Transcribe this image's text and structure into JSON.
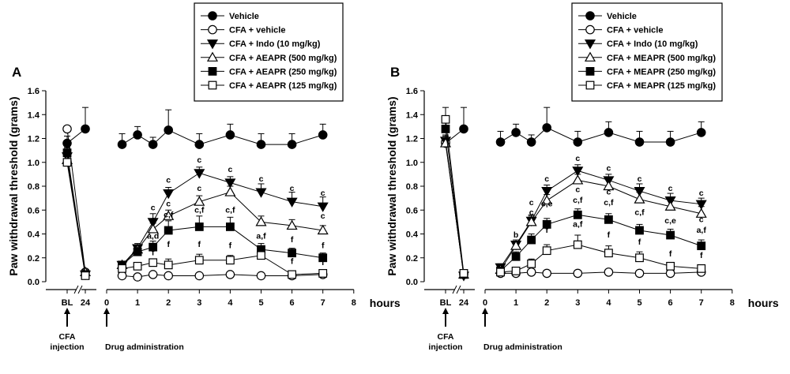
{
  "chart_data": [
    {
      "type": "line",
      "panel_label": "A",
      "ylabel": "Paw withdrawal threshold (grams)",
      "ylim": [
        0,
        1.6
      ],
      "yticks": [
        "0.0",
        "0.2",
        "0.4",
        "0.6",
        "0.8",
        "1.0",
        "1.2",
        "1.4",
        "1.6"
      ],
      "baseline_ticks": [
        "BL",
        "24"
      ],
      "xticks": [
        "0",
        "1",
        "2",
        "3",
        "4",
        "5",
        "6",
        "7",
        "8"
      ],
      "xlabel": "hours",
      "x": [
        0.5,
        1,
        1.5,
        2,
        3,
        4,
        5,
        6,
        7
      ],
      "notes": {
        "cfa": "CFA injection",
        "drug": "Drug administration"
      },
      "series": [
        {
          "name": "Vehicle",
          "marker": "circle-filled",
          "baseline": [
            1.16,
            1.28
          ],
          "baseline_err": [
            0.06,
            0.18
          ],
          "values": [
            1.15,
            1.23,
            1.15,
            1.27,
            1.15,
            1.23,
            1.15,
            1.15,
            1.23
          ],
          "err": [
            0.09,
            0.07,
            0.06,
            0.17,
            0.09,
            0.09,
            0.09,
            0.09,
            0.09
          ]
        },
        {
          "name": "CFA + vehicle",
          "marker": "circle-open",
          "baseline": [
            1.28,
            0.08
          ],
          "baseline_err": [
            0.0,
            0.02
          ],
          "values": [
            0.05,
            0.04,
            0.06,
            0.05,
            0.05,
            0.06,
            0.05,
            0.05,
            0.06
          ],
          "err": [
            0.01,
            0.01,
            0.01,
            0.01,
            0.01,
            0.01,
            0.01,
            0.01,
            0.01
          ]
        },
        {
          "name": "CFA + Indo (10 mg/kg)",
          "marker": "triangle-down-filled",
          "baseline": [
            1.05,
            0.06
          ],
          "baseline_err": [
            0.05,
            0.02
          ],
          "values": [
            0.14,
            0.28,
            0.5,
            0.74,
            0.91,
            0.83,
            0.75,
            0.67,
            0.63
          ],
          "err": [
            0.03,
            0.04,
            0.07,
            0.05,
            0.05,
            0.05,
            0.07,
            0.08,
            0.08
          ]
        },
        {
          "name": "CFA + AEAPR (500 mg/kg)",
          "marker": "triangle-up-open",
          "baseline": [
            1.02,
            0.08
          ],
          "baseline_err": [
            0.05,
            0.02
          ],
          "values": [
            0.14,
            0.27,
            0.44,
            0.55,
            0.67,
            0.75,
            0.5,
            0.47,
            0.43
          ],
          "err": [
            0.03,
            0.04,
            0.05,
            0.05,
            0.05,
            0.05,
            0.05,
            0.05,
            0.04
          ]
        },
        {
          "name": "CFA + AEAPR (250 mg/kg)",
          "marker": "square-filled",
          "baseline": [
            1.08,
            0.06
          ],
          "baseline_err": [
            0.05,
            0.02
          ],
          "values": [
            0.14,
            0.25,
            0.29,
            0.43,
            0.46,
            0.46,
            0.27,
            0.24,
            0.2
          ],
          "err": [
            0.03,
            0.04,
            0.05,
            0.08,
            0.09,
            0.08,
            0.05,
            0.04,
            0.04
          ]
        },
        {
          "name": "CFA + AEAPR (125 mg/kg)",
          "marker": "square-open",
          "baseline": [
            1.0,
            0.05
          ],
          "baseline_err": [
            0.12,
            0.02
          ],
          "values": [
            0.11,
            0.13,
            0.16,
            0.14,
            0.18,
            0.18,
            0.22,
            0.06,
            0.07
          ],
          "err": [
            0.03,
            0.03,
            0.03,
            0.05,
            0.05,
            0.04,
            0.04,
            0.03,
            0.02
          ]
        }
      ],
      "annotations": [
        {
          "x": 1.5,
          "y": 0.6,
          "text": "c"
        },
        {
          "x": 1.5,
          "y": 0.5,
          "text": "c"
        },
        {
          "x": 1.5,
          "y": 0.36,
          "text": "a,d"
        },
        {
          "x": 1.5,
          "y": 0.22,
          "text": "f"
        },
        {
          "x": 2,
          "y": 0.83,
          "text": "c"
        },
        {
          "x": 2,
          "y": 0.63,
          "text": "c"
        },
        {
          "x": 2,
          "y": 0.54,
          "text": "c,f"
        },
        {
          "x": 2,
          "y": 0.29,
          "text": "f"
        },
        {
          "x": 3,
          "y": 1.0,
          "text": "c"
        },
        {
          "x": 3,
          "y": 0.76,
          "text": "c"
        },
        {
          "x": 3,
          "y": 0.58,
          "text": "c,f"
        },
        {
          "x": 3,
          "y": 0.29,
          "text": "f"
        },
        {
          "x": 4,
          "y": 0.92,
          "text": "c"
        },
        {
          "x": 4,
          "y": 0.58,
          "text": "c,f"
        },
        {
          "x": 4,
          "y": 0.28,
          "text": "f"
        },
        {
          "x": 5,
          "y": 0.84,
          "text": "c"
        },
        {
          "x": 5,
          "y": 0.36,
          "text": "a,f"
        },
        {
          "x": 6,
          "y": 0.76,
          "text": "c"
        },
        {
          "x": 6,
          "y": 0.33,
          "text": "f"
        },
        {
          "x": 6,
          "y": 0.15,
          "text": "f"
        },
        {
          "x": 7,
          "y": 0.72,
          "text": "c"
        },
        {
          "x": 7,
          "y": 0.53,
          "text": "c"
        },
        {
          "x": 7,
          "y": 0.28,
          "text": "f"
        },
        {
          "x": 7,
          "y": 0.14,
          "text": "f"
        }
      ]
    },
    {
      "type": "line",
      "panel_label": "B",
      "ylabel": "Paw withdrawal threshold (grams)",
      "ylim": [
        0,
        1.6
      ],
      "yticks": [
        "0.0",
        "0.2",
        "0.4",
        "0.6",
        "0.8",
        "1.0",
        "1.2",
        "1.4",
        "1.6"
      ],
      "baseline_ticks": [
        "BL",
        "24"
      ],
      "xticks": [
        "0",
        "1",
        "2",
        "3",
        "4",
        "5",
        "6",
        "7",
        "8"
      ],
      "xlabel": "hours",
      "x": [
        0.5,
        1,
        1.5,
        2,
        3,
        4,
        5,
        6,
        7
      ],
      "notes": {
        "cfa": "CFA injection",
        "drug": "Drug administration"
      },
      "series": [
        {
          "name": "Vehicle",
          "marker": "circle-filled",
          "baseline": [
            1.16,
            1.28
          ],
          "baseline_err": [
            0.06,
            0.18
          ],
          "values": [
            1.17,
            1.25,
            1.17,
            1.29,
            1.17,
            1.25,
            1.17,
            1.17,
            1.25
          ],
          "err": [
            0.09,
            0.07,
            0.06,
            0.17,
            0.09,
            0.09,
            0.09,
            0.09,
            0.09
          ]
        },
        {
          "name": "CFA + vehicle",
          "marker": "circle-open",
          "baseline": [
            1.17,
            0.06
          ],
          "baseline_err": [
            0.0,
            0.02
          ],
          "values": [
            0.07,
            0.07,
            0.08,
            0.07,
            0.07,
            0.08,
            0.07,
            0.07,
            0.08
          ],
          "err": [
            0.01,
            0.01,
            0.01,
            0.01,
            0.01,
            0.01,
            0.01,
            0.01,
            0.01
          ]
        },
        {
          "name": "CFA + Indo (10 mg/kg)",
          "marker": "triangle-down-filled",
          "baseline": [
            1.18,
            0.05
          ],
          "baseline_err": [
            0.05,
            0.02
          ],
          "values": [
            0.12,
            0.31,
            0.51,
            0.76,
            0.93,
            0.85,
            0.76,
            0.68,
            0.65
          ],
          "err": [
            0.03,
            0.04,
            0.05,
            0.05,
            0.05,
            0.05,
            0.06,
            0.06,
            0.05
          ]
        },
        {
          "name": "CFA + MEAPR (500 mg/kg)",
          "marker": "triangle-up-open",
          "baseline": [
            1.16,
            0.06
          ],
          "baseline_err": [
            0.05,
            0.02
          ],
          "values": [
            0.1,
            0.3,
            0.5,
            0.68,
            0.85,
            0.8,
            0.69,
            0.63,
            0.57
          ],
          "err": [
            0.03,
            0.04,
            0.05,
            0.05,
            0.05,
            0.05,
            0.06,
            0.06,
            0.06
          ]
        },
        {
          "name": "CFA + MEAPR (250 mg/kg)",
          "marker": "square-filled",
          "baseline": [
            1.28,
            0.06
          ],
          "baseline_err": [
            0.05,
            0.02
          ],
          "values": [
            0.09,
            0.21,
            0.35,
            0.48,
            0.56,
            0.52,
            0.43,
            0.39,
            0.3
          ],
          "err": [
            0.03,
            0.04,
            0.05,
            0.05,
            0.05,
            0.05,
            0.05,
            0.05,
            0.05
          ]
        },
        {
          "name": "CFA + MEAPR (125 mg/kg)",
          "marker": "square-open",
          "baseline": [
            1.36,
            0.07
          ],
          "baseline_err": [
            0.1,
            0.02
          ],
          "values": [
            0.08,
            0.09,
            0.15,
            0.26,
            0.31,
            0.24,
            0.2,
            0.13,
            0.11
          ],
          "err": [
            0.02,
            0.03,
            0.04,
            0.05,
            0.08,
            0.06,
            0.05,
            0.03,
            0.03
          ]
        }
      ],
      "annotations": [
        {
          "x": 1,
          "y": 0.37,
          "text": "b"
        },
        {
          "x": 1.5,
          "y": 0.64,
          "text": "c"
        },
        {
          "x": 1.5,
          "y": 0.56,
          "text": "c"
        },
        {
          "x": 2,
          "y": 0.84,
          "text": "c"
        },
        {
          "x": 2,
          "y": 0.75,
          "text": "c"
        },
        {
          "x": 2,
          "y": 0.63,
          "text": "c,e"
        },
        {
          "x": 2,
          "y": 0.41,
          "text": "f"
        },
        {
          "x": 3,
          "y": 1.01,
          "text": "c"
        },
        {
          "x": 3,
          "y": 0.75,
          "text": "c"
        },
        {
          "x": 3,
          "y": 0.66,
          "text": "c,f"
        },
        {
          "x": 3,
          "y": 0.46,
          "text": "a,f"
        },
        {
          "x": 4,
          "y": 0.93,
          "text": "c"
        },
        {
          "x": 4,
          "y": 0.73,
          "text": "c"
        },
        {
          "x": 4,
          "y": 0.64,
          "text": "c,f"
        },
        {
          "x": 4,
          "y": 0.37,
          "text": "f"
        },
        {
          "x": 5,
          "y": 0.84,
          "text": "c"
        },
        {
          "x": 5,
          "y": 0.56,
          "text": "c,f"
        },
        {
          "x": 5,
          "y": 0.31,
          "text": "f"
        },
        {
          "x": 6,
          "y": 0.76,
          "text": "c"
        },
        {
          "x": 6,
          "y": 0.49,
          "text": "c,e"
        },
        {
          "x": 6,
          "y": 0.21,
          "text": "f"
        },
        {
          "x": 7,
          "y": 0.72,
          "text": "c"
        },
        {
          "x": 7,
          "y": 0.5,
          "text": "c"
        },
        {
          "x": 7,
          "y": 0.41,
          "text": "a,f"
        },
        {
          "x": 7,
          "y": 0.2,
          "text": "f"
        }
      ]
    }
  ]
}
